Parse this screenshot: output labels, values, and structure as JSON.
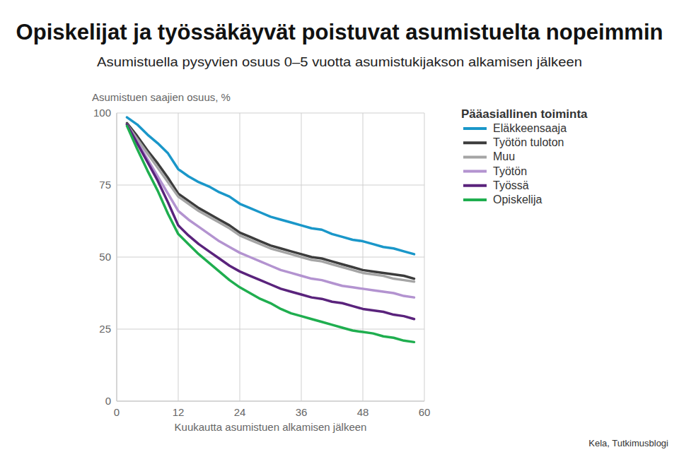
{
  "chart_data": {
    "type": "line",
    "title": "Opiskelijat ja työssäkäyvät poistuvat asumistuelta nopeimmin",
    "subtitle": "Asumistuella pysyvien osuus 0–5 vuotta asumistukijakson alkamisen jälkeen",
    "y_label": "Asumistuen saajien osuus, %",
    "x_label": "Kuukautta asumistuen alkamisen jälkeen",
    "legend_title": "Pääasiallinen toiminta",
    "source": "Kela, Tutkimusblogi",
    "legend": "right",
    "grid": true,
    "xlim": [
      0,
      60
    ],
    "ylim": [
      0,
      100
    ],
    "xticks": [
      0,
      12,
      24,
      36,
      48,
      60
    ],
    "yticks": [
      0,
      25,
      50,
      75,
      100
    ],
    "x": [
      2,
      4,
      6,
      8,
      10,
      12,
      14,
      16,
      18,
      20,
      22,
      24,
      26,
      28,
      30,
      32,
      34,
      36,
      38,
      40,
      42,
      44,
      46,
      48,
      50,
      52,
      54,
      56,
      58
    ],
    "series": [
      {
        "name": "Eläkkeensaaja",
        "color": "#1a97c9",
        "values": [
          98.5,
          96,
          92.5,
          89.5,
          86,
          80.5,
          78,
          76,
          74.5,
          72.5,
          71,
          68.5,
          67,
          65.5,
          64,
          63,
          62,
          61,
          60,
          59.5,
          58,
          57,
          56,
          55.5,
          54.5,
          53.5,
          53,
          52,
          51
        ]
      },
      {
        "name": "Työtön tuloton",
        "color": "#3c3c3c",
        "values": [
          96.5,
          92,
          87,
          82.5,
          77.5,
          72,
          69.5,
          67,
          65,
          63,
          61,
          58.5,
          57,
          55.5,
          54,
          53,
          52,
          51,
          50,
          49.5,
          48.5,
          47.5,
          46.5,
          45.5,
          45,
          44.5,
          44,
          43.5,
          42.5
        ]
      },
      {
        "name": "Muu",
        "color": "#a5a5a5",
        "values": [
          96,
          91,
          86,
          81,
          76,
          71,
          68.5,
          66,
          64,
          62,
          60,
          57.5,
          56,
          54.5,
          53,
          52,
          51,
          50,
          49,
          48.5,
          47.5,
          46.5,
          45.5,
          44.5,
          44,
          43.5,
          42.5,
          42,
          41.5
        ]
      },
      {
        "name": "Työtön",
        "color": "#b393d0",
        "values": [
          96,
          90,
          84,
          78,
          72,
          66,
          63,
          60.5,
          58,
          55.5,
          53.5,
          51.5,
          50,
          48.5,
          47,
          45.5,
          44.5,
          43.5,
          42.5,
          42,
          41,
          40,
          39.5,
          39,
          38.5,
          38,
          37.5,
          36.5,
          36
        ]
      },
      {
        "name": "Työssä",
        "color": "#5a237c",
        "values": [
          96,
          89.5,
          83,
          76.5,
          69,
          61,
          57.5,
          54.5,
          52,
          49.5,
          47,
          45,
          43.5,
          42,
          40.5,
          39,
          38,
          37,
          36,
          35.5,
          34.5,
          34,
          33,
          32,
          31.5,
          31,
          30,
          29.5,
          28.5
        ]
      },
      {
        "name": "Opiskelija",
        "color": "#1fae4f",
        "values": [
          95.5,
          87.5,
          80,
          73,
          65,
          58,
          54.5,
          51,
          48,
          45,
          42,
          39.5,
          37.5,
          35.5,
          34,
          32,
          30.5,
          29.5,
          28.5,
          27.5,
          26.5,
          25.5,
          24.5,
          24,
          23.5,
          22.5,
          22,
          21,
          20.5
        ]
      }
    ]
  }
}
